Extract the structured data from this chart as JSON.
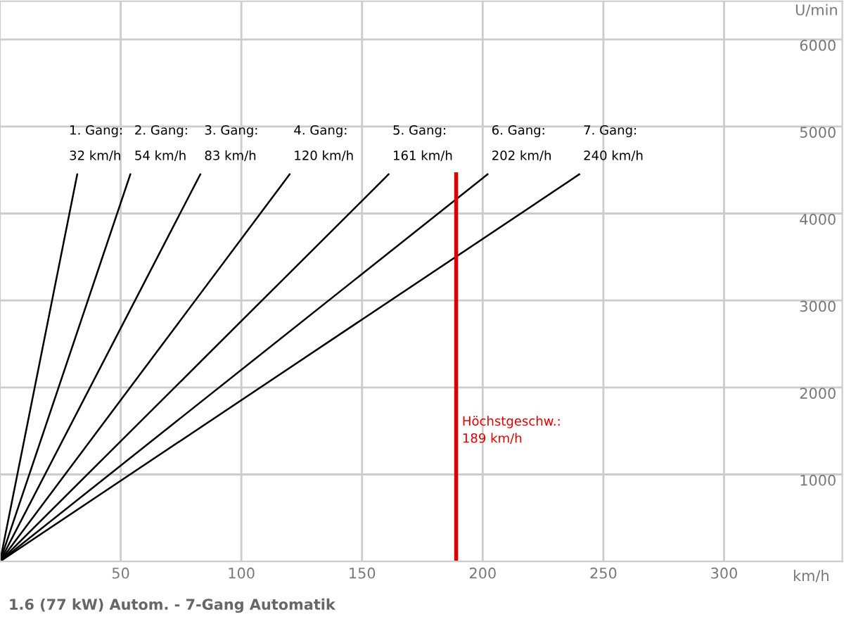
{
  "chart_data": {
    "type": "line",
    "title": "1.6 (77 kW) Autom. - 7-Gang Automatik",
    "xlabel": "km/h",
    "ylabel": "U/min",
    "xlim": [
      0,
      349
    ],
    "xticks": [
      50,
      100,
      150,
      200,
      250,
      300
    ],
    "ylim": [
      0,
      6440
    ],
    "yticks": [
      1000,
      2000,
      3000,
      4000,
      5000,
      6000
    ],
    "grid": true,
    "marker": "none",
    "line_style": "solid",
    "series": [
      {
        "name": "1. Gang:",
        "color": "#000000",
        "x": [
          0,
          32
        ],
        "values": [
          0,
          4450
        ]
      },
      {
        "name": "2. Gang:",
        "color": "#000000",
        "x": [
          0,
          54
        ],
        "values": [
          0,
          4450
        ]
      },
      {
        "name": "3. Gang:",
        "color": "#000000",
        "x": [
          0,
          83
        ],
        "values": [
          0,
          4450
        ]
      },
      {
        "name": "4. Gang:",
        "color": "#000000",
        "x": [
          0,
          120
        ],
        "values": [
          0,
          4450
        ]
      },
      {
        "name": "5. Gang:",
        "color": "#000000",
        "x": [
          0,
          161
        ],
        "values": [
          0,
          4450
        ]
      },
      {
        "name": "6. Gang:",
        "color": "#000000",
        "x": [
          0,
          202
        ],
        "values": [
          0,
          4450
        ]
      },
      {
        "name": "7. Gang:",
        "color": "#000000",
        "x": [
          0,
          240
        ],
        "values": [
          0,
          4450
        ]
      }
    ],
    "annotations": [
      {
        "text": "32 km/h",
        "x": 32,
        "y": 4450
      },
      {
        "text": "54 km/h",
        "x": 54,
        "y": 4450
      },
      {
        "text": "83 km/h",
        "x": 83,
        "y": 4450
      },
      {
        "text": "120 km/h",
        "x": 120,
        "y": 4450
      },
      {
        "text": "161 km/h",
        "x": 161,
        "y": 4450
      },
      {
        "text": "202 km/h",
        "x": 202,
        "y": 4450
      },
      {
        "text": "240 km/h",
        "x": 240,
        "y": 4450
      }
    ],
    "ref_lines": [
      {
        "axis": "x",
        "value": 189,
        "label": "Höchstgeschw.:\n189 km/h",
        "color": "#dd0000",
        "line_style": "solid"
      }
    ]
  }
}
